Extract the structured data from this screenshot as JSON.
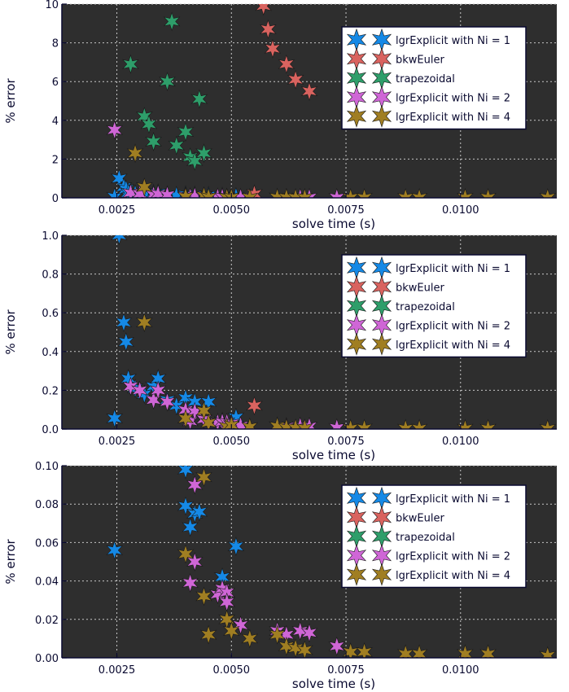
{
  "colors": {
    "background": "#2e2e2e",
    "grid": "#c8c8c8",
    "axis": "#0a0a30",
    "legend_bg": "#ffffff",
    "legend_border": "#0a0a30"
  },
  "chart_data": [
    {
      "type": "scatter",
      "title": "",
      "xlabel": "solve time (s)",
      "ylabel": "% error",
      "xlim": [
        0.0013,
        0.0121
      ],
      "ylim": [
        0,
        10
      ],
      "xticks": [
        0.0025,
        0.005,
        0.0075,
        0.01
      ],
      "xtick_labels": [
        "0.0025",
        "0.0050",
        "0.0075",
        "0.0100"
      ],
      "yticks": [
        0,
        2,
        4,
        6,
        8,
        10
      ],
      "ytick_labels": [
        "0",
        "2",
        "4",
        "6",
        "8",
        "10"
      ],
      "grid": true,
      "legend_position": "top-right",
      "series": [
        {
          "name": "lgrExplicit with Ni = 1",
          "color": "#1589e6",
          "marker": "star-6",
          "x": [
            0.00245,
            0.00255,
            0.00265,
            0.0027,
            0.00275,
            0.0029,
            0.0031,
            0.0033,
            0.0034,
            0.0036,
            0.0038,
            0.004,
            0.0042,
            0.0045,
            0.0048,
            0.0051
          ],
          "y": [
            0.05,
            1.0,
            0.55,
            0.45,
            0.25,
            0.2,
            0.18,
            0.22,
            0.25,
            0.15,
            0.12,
            0.16,
            0.14,
            0.12,
            0.08,
            0.06
          ]
        },
        {
          "name": "bkwEuler",
          "color": "#d9635f",
          "marker": "star-6",
          "x": [
            0.0055,
            0.0057,
            0.0058,
            0.0059,
            0.0062,
            0.0064,
            0.0067
          ],
          "y": [
            0.2,
            9.9,
            8.7,
            7.7,
            6.9,
            6.1,
            5.5
          ]
        },
        {
          "name": "trapezoidal",
          "color": "#2e9e6a",
          "marker": "star-6",
          "x": [
            0.0028,
            0.0031,
            0.0032,
            0.0033,
            0.0036,
            0.0037,
            0.0038,
            0.004,
            0.0041,
            0.0042,
            0.0043,
            0.0044
          ],
          "y": [
            6.9,
            4.2,
            3.8,
            2.9,
            6.0,
            9.1,
            2.7,
            3.4,
            2.1,
            1.9,
            5.1,
            2.3
          ]
        },
        {
          "name": "lgrExplicit with Ni = 2",
          "color": "#cf66d6",
          "marker": "star-6",
          "x": [
            0.00245,
            0.0028,
            0.003,
            0.0033,
            0.0034,
            0.0036,
            0.004,
            0.0041,
            0.0042,
            0.0044,
            0.0047,
            0.0048,
            0.0049,
            0.005,
            0.0052,
            0.006,
            0.0062,
            0.0065,
            0.0067,
            0.0073
          ],
          "y": [
            3.5,
            0.25,
            0.2,
            0.15,
            0.2,
            0.14,
            0.098,
            0.04,
            0.09,
            0.05,
            0.033,
            0.036,
            0.034,
            0.029,
            0.017,
            0.014,
            0.012,
            0.014,
            0.013,
            0.006
          ]
        },
        {
          "name": "lgrExplicit with Ni = 4",
          "color": "#a07e22",
          "marker": "star-6",
          "x": [
            0.0029,
            0.0031,
            0.004,
            0.0044,
            0.0045,
            0.0049,
            0.005,
            0.0054,
            0.006,
            0.0062,
            0.0064,
            0.0066,
            0.0076,
            0.0079,
            0.0088,
            0.0091,
            0.0101,
            0.0106,
            0.0119
          ],
          "y": [
            2.3,
            0.55,
            0.054,
            0.094,
            0.032,
            0.012,
            0.02,
            0.01,
            0.014,
            0.006,
            0.005,
            0.004,
            0.003,
            0.003,
            0.002,
            0.002,
            0.002,
            0.002,
            0.001
          ]
        }
      ]
    },
    {
      "type": "scatter",
      "title": "",
      "xlabel": "solve time (s)",
      "ylabel": "% error",
      "xlim": [
        0.0013,
        0.0121
      ],
      "ylim": [
        0,
        1.0
      ],
      "xticks": [
        0.0025,
        0.005,
        0.0075,
        0.01
      ],
      "xtick_labels": [
        "0.0025",
        "0.0050",
        "0.0075",
        "0.0100"
      ],
      "yticks": [
        0,
        0.2,
        0.4,
        0.6,
        0.8,
        1.0
      ],
      "ytick_labels": [
        "0.0",
        "0.2",
        "0.4",
        "0.6",
        "0.8",
        "1.0"
      ],
      "grid": true,
      "legend_position": "top-right",
      "series": [
        {
          "name": "lgrExplicit with Ni = 1",
          "color": "#1589e6",
          "marker": "star-6",
          "x": [
            0.00245,
            0.00255,
            0.00265,
            0.0027,
            0.00275,
            0.0029,
            0.0031,
            0.0033,
            0.0034,
            0.0036,
            0.0038,
            0.004,
            0.0042,
            0.0045,
            0.0048,
            0.0051
          ],
          "y": [
            0.055,
            1.0,
            0.55,
            0.45,
            0.26,
            0.21,
            0.18,
            0.22,
            0.26,
            0.15,
            0.12,
            0.16,
            0.14,
            0.14,
            0.04,
            0.06
          ]
        },
        {
          "name": "bkwEuler",
          "color": "#d9635f",
          "marker": "star-6",
          "x": [
            0.0055
          ],
          "y": [
            0.12
          ]
        },
        {
          "name": "trapezoidal",
          "color": "#2e9e6a",
          "marker": "star-6",
          "x": [],
          "y": []
        },
        {
          "name": "lgrExplicit with Ni = 2",
          "color": "#cf66d6",
          "marker": "star-6",
          "x": [
            0.0028,
            0.003,
            0.0033,
            0.0034,
            0.0036,
            0.004,
            0.0041,
            0.0042,
            0.0044,
            0.0047,
            0.0048,
            0.0049,
            0.005,
            0.0052,
            0.006,
            0.0062,
            0.0065,
            0.0067,
            0.0073
          ],
          "y": [
            0.22,
            0.2,
            0.15,
            0.2,
            0.14,
            0.098,
            0.04,
            0.09,
            0.05,
            0.033,
            0.036,
            0.034,
            0.029,
            0.017,
            0.014,
            0.012,
            0.014,
            0.013,
            0.006
          ]
        },
        {
          "name": "lgrExplicit with Ni = 4",
          "color": "#a07e22",
          "marker": "star-6",
          "x": [
            0.0031,
            0.004,
            0.0044,
            0.0045,
            0.0049,
            0.005,
            0.0054,
            0.006,
            0.0062,
            0.0064,
            0.0066,
            0.0076,
            0.0079,
            0.0088,
            0.0091,
            0.0101,
            0.0106,
            0.0119
          ],
          "y": [
            0.55,
            0.054,
            0.094,
            0.032,
            0.012,
            0.02,
            0.01,
            0.014,
            0.006,
            0.005,
            0.004,
            0.003,
            0.003,
            0.002,
            0.002,
            0.002,
            0.002,
            0.001
          ]
        }
      ]
    },
    {
      "type": "scatter",
      "title": "",
      "xlabel": "solve time (s)",
      "ylabel": "% error",
      "xlim": [
        0.0013,
        0.0121
      ],
      "ylim": [
        0,
        0.1
      ],
      "xticks": [
        0.0025,
        0.005,
        0.0075,
        0.01
      ],
      "xtick_labels": [
        "0.0025",
        "0.0050",
        "0.0075",
        "0.0100"
      ],
      "yticks": [
        0,
        0.02,
        0.04,
        0.06,
        0.08,
        0.1
      ],
      "ytick_labels": [
        "0.00",
        "0.02",
        "0.04",
        "0.06",
        "0.08",
        "0.10"
      ],
      "grid": true,
      "legend_position": "top-right",
      "series": [
        {
          "name": "lgrExplicit with Ni = 1",
          "color": "#1589e6",
          "marker": "star-6",
          "x": [
            0.00245,
            0.004,
            0.004,
            0.0041,
            0.0042,
            0.0043,
            0.0048,
            0.0051
          ],
          "y": [
            0.056,
            0.098,
            0.079,
            0.068,
            0.075,
            0.076,
            0.042,
            0.058
          ]
        },
        {
          "name": "bkwEuler",
          "color": "#d9635f",
          "marker": "star-6",
          "x": [],
          "y": []
        },
        {
          "name": "trapezoidal",
          "color": "#2e9e6a",
          "marker": "star-6",
          "x": [],
          "y": []
        },
        {
          "name": "lgrExplicit with Ni = 2",
          "color": "#cf66d6",
          "marker": "star-6",
          "x": [
            0.0041,
            0.0042,
            0.0042,
            0.0047,
            0.0048,
            0.0049,
            0.0049,
            0.0052,
            0.006,
            0.0062,
            0.0065,
            0.0067,
            0.0073
          ],
          "y": [
            0.039,
            0.09,
            0.05,
            0.033,
            0.036,
            0.034,
            0.029,
            0.017,
            0.014,
            0.012,
            0.014,
            0.013,
            0.006
          ]
        },
        {
          "name": "lgrExplicit with Ni = 4",
          "color": "#a07e22",
          "marker": "star-6",
          "x": [
            0.004,
            0.0044,
            0.0044,
            0.0045,
            0.0049,
            0.005,
            0.0054,
            0.006,
            0.0062,
            0.0064,
            0.0066,
            0.0076,
            0.0079,
            0.0088,
            0.0091,
            0.0101,
            0.0106,
            0.0119
          ],
          "y": [
            0.054,
            0.094,
            0.032,
            0.012,
            0.02,
            0.014,
            0.01,
            0.012,
            0.006,
            0.005,
            0.004,
            0.003,
            0.003,
            0.002,
            0.002,
            0.002,
            0.002,
            0.001
          ]
        }
      ]
    }
  ]
}
